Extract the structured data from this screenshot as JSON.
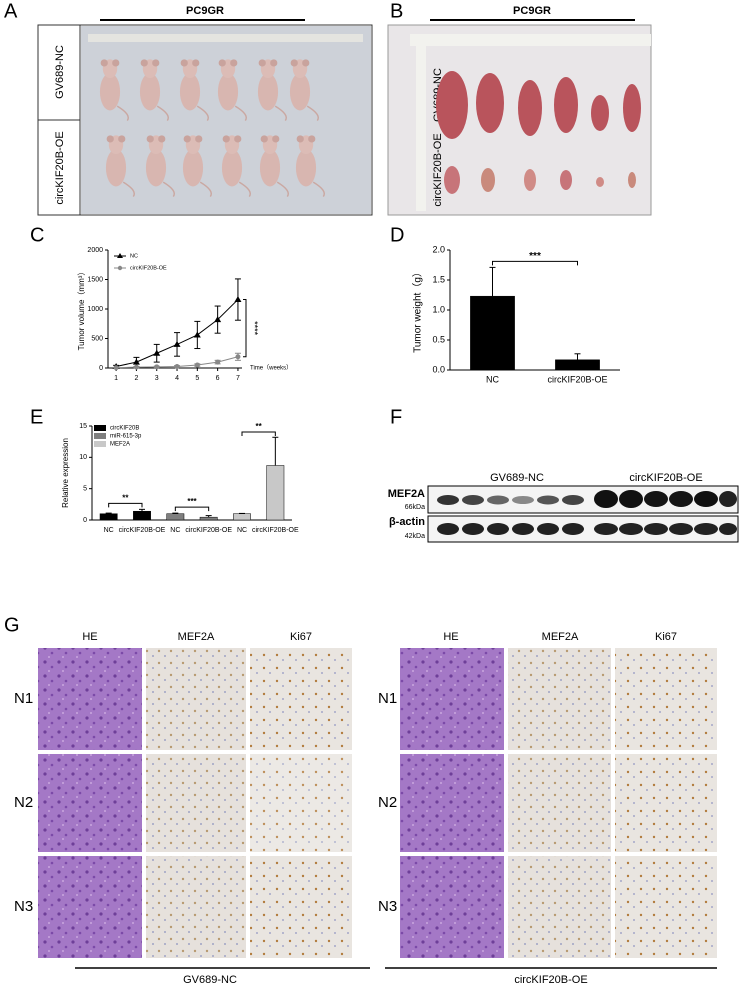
{
  "figure": {
    "panel_labels": [
      "A",
      "B",
      "C",
      "D",
      "E",
      "F",
      "G"
    ],
    "A": {
      "title": "PC9GR",
      "rows": [
        "GV689-NC",
        "circKIF20B-OE"
      ]
    },
    "B": {
      "title": "PC9GR",
      "rows": [
        "GV689-NC",
        "circKIF20B-OE"
      ]
    },
    "F": {
      "groups": [
        "GV689-NC",
        "circKIF20B-OE"
      ],
      "bands": [
        {
          "name": "MEF2A",
          "size": "66kDa"
        },
        {
          "name": "β-actin",
          "size": "42kDa"
        }
      ]
    },
    "G": {
      "columns": [
        "HE",
        "MEF2A",
        "Ki67"
      ],
      "rows": [
        "N1",
        "N2",
        "N3"
      ],
      "groups": [
        "GV689-NC",
        "circKIF20B-OE"
      ]
    }
  },
  "chart_data": [
    {
      "type": "line",
      "xlabel": "Time（weeks）",
      "ylabel": "Tumor volume（mm³）",
      "x": [
        1,
        2,
        3,
        4,
        5,
        6,
        7
      ],
      "xlim": [
        0.6,
        7.2
      ],
      "xticks": [
        1,
        2,
        3,
        4,
        5,
        6,
        7
      ],
      "ylim": [
        0,
        2000
      ],
      "yticks": [
        0,
        500,
        1000,
        1500,
        2000
      ],
      "series": [
        {
          "name": "NC",
          "color": "#000000",
          "marker": "triangle",
          "values": [
            25,
            100,
            250,
            400,
            560,
            820,
            1160
          ],
          "errors": [
            20,
            80,
            150,
            200,
            230,
            230,
            350
          ]
        },
        {
          "name": "circKIF20B-OE",
          "color": "#888888",
          "marker": "circle",
          "values": [
            5,
            15,
            20,
            25,
            50,
            100,
            190
          ],
          "errors": [
            5,
            10,
            10,
            15,
            20,
            30,
            60
          ]
        }
      ],
      "annotations": [
        "****"
      ]
    },
    {
      "type": "bar",
      "ylabel": "Tumor weight（g）",
      "categories": [
        "NC",
        "circKIF20B-OE"
      ],
      "values": [
        1.23,
        0.17
      ],
      "errors": [
        0.48,
        0.1
      ],
      "color": "#000000",
      "ylim": [
        0,
        2
      ],
      "yticks": [
        {
          "value": 0,
          "label": "0.0"
        },
        {
          "value": 0.5,
          "label": "0.5"
        },
        {
          "value": 1,
          "label": "1.0"
        },
        {
          "value": 1.5,
          "label": "1.5"
        },
        {
          "value": 2,
          "label": "2.0"
        }
      ],
      "annotations": [
        "***"
      ]
    },
    {
      "type": "bar",
      "ylabel": "Relative expression",
      "categories": [
        "NC",
        "circKIF20B-OE",
        "NC",
        "circKIF20B-OE",
        "NC",
        "circKIF20B-OE"
      ],
      "ylim": [
        0,
        15
      ],
      "yticks": [
        0,
        5,
        10,
        15
      ],
      "series": [
        {
          "name": "circKIF20B",
          "color": "#000000",
          "values": [
            1.0,
            1.4,
            null,
            null,
            null,
            null
          ],
          "errors": [
            0.1,
            0.3,
            null,
            null,
            null,
            null
          ]
        },
        {
          "name": "miR-615-3p",
          "color": "#7f7f7f",
          "values": [
            null,
            null,
            1.0,
            0.45,
            null,
            null
          ],
          "errors": [
            null,
            null,
            0.1,
            0.25,
            null,
            null
          ]
        },
        {
          "name": "MEF2A",
          "color": "#c8c8c8",
          "values": [
            null,
            null,
            null,
            null,
            1.0,
            8.7
          ],
          "errors": [
            null,
            null,
            null,
            null,
            0.05,
            4.5
          ]
        }
      ],
      "annotations": [
        "**",
        "***",
        "**"
      ]
    }
  ]
}
